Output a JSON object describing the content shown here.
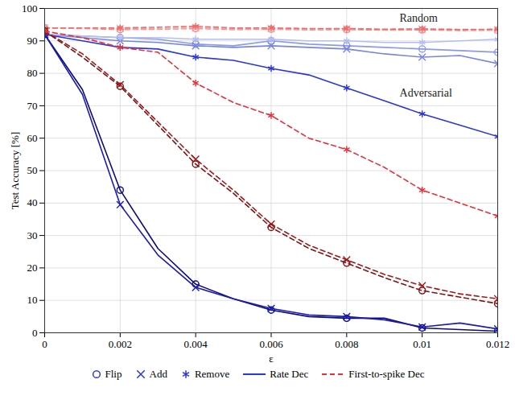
{
  "chart_data": {
    "type": "line",
    "x_label": "ε",
    "y_label": "Test Accuracy [%]",
    "x": [
      0,
      0.001,
      0.002,
      0.003,
      0.004,
      0.005,
      0.006,
      0.007,
      0.008,
      0.009,
      0.01,
      0.011,
      0.012
    ],
    "xlim": [
      0,
      0.012
    ],
    "xticks": [
      0,
      0.002,
      0.004,
      0.006,
      0.008,
      0.01,
      0.012
    ],
    "ylim": [
      0,
      100
    ],
    "yticks": [
      0,
      10,
      20,
      30,
      40,
      50,
      60,
      70,
      80,
      90,
      100
    ],
    "grid": true,
    "legend": "bottom",
    "legend_markers": [
      {
        "label": "Flip",
        "marker": "circle"
      },
      {
        "label": "Add",
        "marker": "times"
      },
      {
        "label": "Remove",
        "marker": "asterisk"
      }
    ],
    "legend_lines": [
      {
        "label": "Rate Dec",
        "line_style": "solid",
        "color": "#2a36d8"
      },
      {
        "label": "First-to-spike Dec",
        "line_style": "dashed",
        "color": "#e8303a"
      }
    ],
    "annotations": [
      {
        "text": "Random",
        "x": 0.0094,
        "y": 97
      },
      {
        "text": "Adversarial",
        "x": 0.0094,
        "y": 74
      }
    ],
    "series": [
      {
        "name": "Flip",
        "group": "Random",
        "decoder": "Rate Dec",
        "color": "#8c9ae6",
        "marker": "circle",
        "line_style": "solid",
        "values": [
          92,
          91.5,
          91,
          90.5,
          89,
          88.5,
          90,
          89,
          88.5,
          88,
          87.5,
          87,
          86.5
        ]
      },
      {
        "name": "Add",
        "group": "Random",
        "decoder": "Rate Dec",
        "color": "#7886dc",
        "marker": "times",
        "line_style": "solid",
        "values": [
          92,
          91,
          90,
          89.5,
          88.5,
          88,
          88.5,
          88,
          87.5,
          86,
          85,
          85.5,
          83
        ]
      },
      {
        "name": "Remove",
        "group": "Random",
        "decoder": "Rate Dec",
        "color": "#b4bef2",
        "marker": "asterisk",
        "line_style": "solid",
        "values": [
          92,
          91.5,
          91,
          91,
          90.5,
          90.5,
          90.5,
          90,
          90,
          89.5,
          89.5,
          90,
          90.5
        ]
      },
      {
        "name": "Flip",
        "group": "Random",
        "decoder": "First-to-spike Dec",
        "color": "#f08a8a",
        "marker": "circle",
        "line_style": "dashed",
        "values": [
          94,
          93.8,
          93.5,
          93.6,
          93.8,
          93.5,
          93.6,
          93.4,
          93.5,
          93.3,
          93.4,
          93.2,
          93.3
        ]
      },
      {
        "name": "Add",
        "group": "Random",
        "decoder": "First-to-spike Dec",
        "color": "#f4a6a6",
        "marker": "times",
        "line_style": "dashed",
        "values": [
          94,
          93.9,
          93.8,
          93.7,
          94,
          93.7,
          93.8,
          93.6,
          93.7,
          93.5,
          93.6,
          93.5,
          93.4
        ]
      },
      {
        "name": "Remove",
        "group": "Random",
        "decoder": "First-to-spike Dec",
        "color": "#ee6a6a",
        "marker": "asterisk",
        "line_style": "dashed",
        "values": [
          94,
          94,
          94,
          94.2,
          94.5,
          94,
          94,
          93.8,
          93.8,
          93.6,
          93.7,
          93.5,
          93.6
        ]
      },
      {
        "name": "Flip",
        "group": "Adversarial",
        "decoder": "Rate Dec",
        "color": "#0c0c78",
        "marker": "circle",
        "line_style": "solid",
        "values": [
          92,
          75,
          44,
          26,
          15,
          10.5,
          7,
          5,
          4.5,
          4.5,
          1.5,
          1,
          0.5
        ]
      },
      {
        "name": "Add",
        "group": "Adversarial",
        "decoder": "Rate Dec",
        "color": "#1c1cb0",
        "marker": "times",
        "line_style": "solid",
        "values": [
          92,
          73.5,
          39.5,
          24,
          14,
          10.5,
          7.5,
          5.5,
          5,
          4,
          1.8,
          3,
          1.2
        ]
      },
      {
        "name": "Remove",
        "group": "Adversarial",
        "decoder": "Rate Dec",
        "color": "#2a36d8",
        "marker": "asterisk",
        "line_style": "solid",
        "values": [
          92,
          90,
          88,
          87.5,
          85,
          84,
          81.5,
          79.5,
          75.5,
          71.5,
          67.5,
          64,
          60.5
        ]
      },
      {
        "name": "Flip",
        "group": "Adversarial",
        "decoder": "First-to-spike Dec",
        "color": "#7a1414",
        "marker": "circle",
        "line_style": "dashed",
        "values": [
          93,
          85,
          76,
          64,
          52,
          43,
          32.5,
          26,
          21.5,
          17,
          13,
          11,
          9
        ]
      },
      {
        "name": "Add",
        "group": "Adversarial",
        "decoder": "First-to-spike Dec",
        "color": "#a01818",
        "marker": "times",
        "line_style": "dashed",
        "values": [
          93,
          86,
          76.5,
          65,
          53.5,
          44,
          33.5,
          27,
          22.5,
          18,
          14.5,
          12,
          10.5
        ]
      },
      {
        "name": "Remove",
        "group": "Adversarial",
        "decoder": "First-to-spike Dec",
        "color": "#e8303a",
        "marker": "asterisk",
        "line_style": "dashed",
        "values": [
          93,
          91,
          88,
          86.5,
          77,
          71,
          67,
          60,
          56.5,
          51,
          44,
          40,
          36
        ]
      }
    ]
  }
}
